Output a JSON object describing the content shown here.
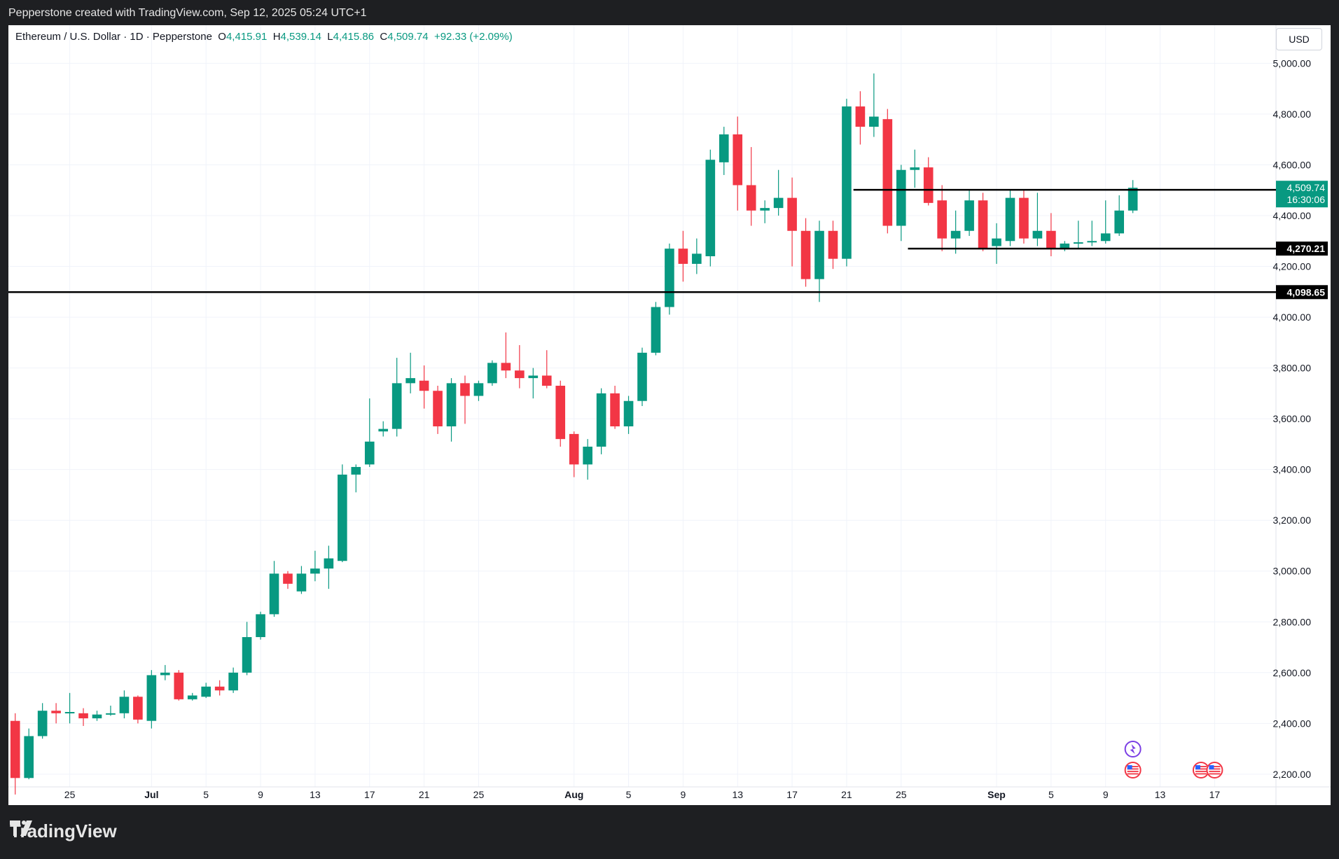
{
  "header": {
    "attribution": "Pepperstone created with TradingView.com, Sep 12, 2025 05:24 UTC+1"
  },
  "legend": {
    "symbol": "Ethereum / U.S. Dollar · 1D · Pepperstone",
    "o_label": "O",
    "o_value": "4,415.91",
    "h_label": "H",
    "h_value": "4,539.14",
    "l_label": "L",
    "l_value": "4,415.86",
    "c_label": "C",
    "c_value": "4,509.74",
    "change": "+92.33 (+2.09%)"
  },
  "currency_button": "USD",
  "footer": {
    "brand": "TradingView"
  },
  "colors": {
    "up": "#089981",
    "down": "#f23645",
    "grid": "#f0f3fa",
    "line": "#000000",
    "text": "#131722"
  },
  "chart_data": {
    "type": "candlestick",
    "ylim": [
      2150,
      5150
    ],
    "y_ticks": [
      2200,
      2400,
      2600,
      2800,
      3000,
      3200,
      3400,
      3600,
      3800,
      4000,
      4200,
      4400,
      4600,
      4800,
      5000
    ],
    "y_tick_labels": [
      "2,200.00",
      "2,400.00",
      "2,600.00",
      "2,800.00",
      "3,000.00",
      "3,200.00",
      "3,400.00",
      "3,600.00",
      "3,800.00",
      "4,000.00",
      "4,200.00",
      "4,400.00",
      "4,600.00",
      "4,800.00",
      "5,000.00"
    ],
    "x_ticks": [
      {
        "date": "2025-06-25",
        "label": "25"
      },
      {
        "date": "2025-07-01",
        "label": "Jul"
      },
      {
        "date": "2025-07-05",
        "label": "5"
      },
      {
        "date": "2025-07-09",
        "label": "9"
      },
      {
        "date": "2025-07-13",
        "label": "13"
      },
      {
        "date": "2025-07-17",
        "label": "17"
      },
      {
        "date": "2025-07-21",
        "label": "21"
      },
      {
        "date": "2025-07-25",
        "label": "25"
      },
      {
        "date": "2025-08-01",
        "label": "Aug"
      },
      {
        "date": "2025-08-05",
        "label": "5"
      },
      {
        "date": "2025-08-09",
        "label": "9"
      },
      {
        "date": "2025-08-13",
        "label": "13"
      },
      {
        "date": "2025-08-17",
        "label": "17"
      },
      {
        "date": "2025-08-21",
        "label": "21"
      },
      {
        "date": "2025-08-25",
        "label": "25"
      },
      {
        "date": "2025-09-01",
        "label": "Sep"
      },
      {
        "date": "2025-09-05",
        "label": "5"
      },
      {
        "date": "2025-09-09",
        "label": "9"
      },
      {
        "date": "2025-09-13",
        "label": "13"
      },
      {
        "date": "2025-09-17",
        "label": "17"
      }
    ],
    "xlim": [
      "2025-06-21",
      "2025-09-21"
    ],
    "candles": [
      {
        "date": "2025-06-21",
        "o": 2410,
        "h": 2440,
        "l": 2120,
        "c": 2185
      },
      {
        "date": "2025-06-22",
        "o": 2185,
        "h": 2380,
        "l": 2180,
        "c": 2350
      },
      {
        "date": "2025-06-23",
        "o": 2350,
        "h": 2480,
        "l": 2340,
        "c": 2450
      },
      {
        "date": "2025-06-24",
        "o": 2450,
        "h": 2480,
        "l": 2400,
        "c": 2440
      },
      {
        "date": "2025-06-25",
        "o": 2440,
        "h": 2520,
        "l": 2400,
        "c": 2445
      },
      {
        "date": "2025-06-26",
        "o": 2440,
        "h": 2460,
        "l": 2390,
        "c": 2420
      },
      {
        "date": "2025-06-27",
        "o": 2420,
        "h": 2450,
        "l": 2410,
        "c": 2435
      },
      {
        "date": "2025-06-28",
        "o": 2435,
        "h": 2470,
        "l": 2430,
        "c": 2440
      },
      {
        "date": "2025-06-29",
        "o": 2440,
        "h": 2530,
        "l": 2420,
        "c": 2505
      },
      {
        "date": "2025-06-30",
        "o": 2505,
        "h": 2510,
        "l": 2400,
        "c": 2415
      },
      {
        "date": "2025-07-01",
        "o": 2410,
        "h": 2610,
        "l": 2380,
        "c": 2590
      },
      {
        "date": "2025-07-02",
        "o": 2590,
        "h": 2630,
        "l": 2570,
        "c": 2600
      },
      {
        "date": "2025-07-03",
        "o": 2600,
        "h": 2610,
        "l": 2490,
        "c": 2495
      },
      {
        "date": "2025-07-04",
        "o": 2495,
        "h": 2520,
        "l": 2490,
        "c": 2510
      },
      {
        "date": "2025-07-05",
        "o": 2505,
        "h": 2560,
        "l": 2500,
        "c": 2545
      },
      {
        "date": "2025-07-06",
        "o": 2545,
        "h": 2570,
        "l": 2510,
        "c": 2530
      },
      {
        "date": "2025-07-07",
        "o": 2530,
        "h": 2620,
        "l": 2520,
        "c": 2600
      },
      {
        "date": "2025-07-08",
        "o": 2600,
        "h": 2800,
        "l": 2590,
        "c": 2740
      },
      {
        "date": "2025-07-09",
        "o": 2740,
        "h": 2840,
        "l": 2730,
        "c": 2830
      },
      {
        "date": "2025-07-10",
        "o": 2830,
        "h": 3040,
        "l": 2820,
        "c": 2990
      },
      {
        "date": "2025-07-11",
        "o": 2990,
        "h": 3000,
        "l": 2930,
        "c": 2950
      },
      {
        "date": "2025-07-12",
        "o": 2920,
        "h": 3020,
        "l": 2910,
        "c": 2990
      },
      {
        "date": "2025-07-13",
        "o": 2990,
        "h": 3080,
        "l": 2960,
        "c": 3010
      },
      {
        "date": "2025-07-14",
        "o": 3010,
        "h": 3100,
        "l": 2930,
        "c": 3050
      },
      {
        "date": "2025-07-15",
        "o": 3040,
        "h": 3420,
        "l": 3035,
        "c": 3380
      },
      {
        "date": "2025-07-16",
        "o": 3380,
        "h": 3420,
        "l": 3310,
        "c": 3410
      },
      {
        "date": "2025-07-17",
        "o": 3420,
        "h": 3680,
        "l": 3410,
        "c": 3510
      },
      {
        "date": "2025-07-18",
        "o": 3550,
        "h": 3590,
        "l": 3530,
        "c": 3560
      },
      {
        "date": "2025-07-19",
        "o": 3560,
        "h": 3840,
        "l": 3530,
        "c": 3740
      },
      {
        "date": "2025-07-20",
        "o": 3740,
        "h": 3860,
        "l": 3700,
        "c": 3760
      },
      {
        "date": "2025-07-21",
        "o": 3750,
        "h": 3810,
        "l": 3640,
        "c": 3710
      },
      {
        "date": "2025-07-22",
        "o": 3710,
        "h": 3730,
        "l": 3540,
        "c": 3570
      },
      {
        "date": "2025-07-23",
        "o": 3570,
        "h": 3760,
        "l": 3510,
        "c": 3740
      },
      {
        "date": "2025-07-24",
        "o": 3740,
        "h": 3770,
        "l": 3580,
        "c": 3690
      },
      {
        "date": "2025-07-25",
        "o": 3690,
        "h": 3750,
        "l": 3670,
        "c": 3740
      },
      {
        "date": "2025-07-26",
        "o": 3740,
        "h": 3830,
        "l": 3730,
        "c": 3820
      },
      {
        "date": "2025-07-27",
        "o": 3820,
        "h": 3940,
        "l": 3760,
        "c": 3790
      },
      {
        "date": "2025-07-28",
        "o": 3790,
        "h": 3890,
        "l": 3720,
        "c": 3760
      },
      {
        "date": "2025-07-29",
        "o": 3760,
        "h": 3800,
        "l": 3680,
        "c": 3770
      },
      {
        "date": "2025-07-30",
        "o": 3770,
        "h": 3870,
        "l": 3720,
        "c": 3730
      },
      {
        "date": "2025-07-31",
        "o": 3730,
        "h": 3750,
        "l": 3490,
        "c": 3520
      },
      {
        "date": "2025-08-01",
        "o": 3540,
        "h": 3550,
        "l": 3370,
        "c": 3420
      },
      {
        "date": "2025-08-02",
        "o": 3420,
        "h": 3520,
        "l": 3360,
        "c": 3490
      },
      {
        "date": "2025-08-03",
        "o": 3490,
        "h": 3720,
        "l": 3460,
        "c": 3700
      },
      {
        "date": "2025-08-04",
        "o": 3700,
        "h": 3730,
        "l": 3560,
        "c": 3570
      },
      {
        "date": "2025-08-05",
        "o": 3570,
        "h": 3690,
        "l": 3540,
        "c": 3670
      },
      {
        "date": "2025-08-06",
        "o": 3670,
        "h": 3880,
        "l": 3650,
        "c": 3860
      },
      {
        "date": "2025-08-07",
        "o": 3860,
        "h": 4060,
        "l": 3850,
        "c": 4040
      },
      {
        "date": "2025-08-08",
        "o": 4040,
        "h": 4290,
        "l": 4010,
        "c": 4270
      },
      {
        "date": "2025-08-09",
        "o": 4270,
        "h": 4340,
        "l": 4140,
        "c": 4210
      },
      {
        "date": "2025-08-10",
        "o": 4210,
        "h": 4310,
        "l": 4170,
        "c": 4250
      },
      {
        "date": "2025-08-11",
        "o": 4240,
        "h": 4660,
        "l": 4200,
        "c": 4620
      },
      {
        "date": "2025-08-12",
        "o": 4610,
        "h": 4750,
        "l": 4560,
        "c": 4720
      },
      {
        "date": "2025-08-13",
        "o": 4720,
        "h": 4790,
        "l": 4420,
        "c": 4520
      },
      {
        "date": "2025-08-14",
        "o": 4520,
        "h": 4670,
        "l": 4360,
        "c": 4420
      },
      {
        "date": "2025-08-15",
        "o": 4420,
        "h": 4460,
        "l": 4370,
        "c": 4430
      },
      {
        "date": "2025-08-16",
        "o": 4430,
        "h": 4580,
        "l": 4400,
        "c": 4470
      },
      {
        "date": "2025-08-17",
        "o": 4470,
        "h": 4550,
        "l": 4200,
        "c": 4340
      },
      {
        "date": "2025-08-18",
        "o": 4340,
        "h": 4390,
        "l": 4120,
        "c": 4150
      },
      {
        "date": "2025-08-19",
        "o": 4150,
        "h": 4380,
        "l": 4060,
        "c": 4340
      },
      {
        "date": "2025-08-20",
        "o": 4340,
        "h": 4380,
        "l": 4190,
        "c": 4230
      },
      {
        "date": "2025-08-21",
        "o": 4230,
        "h": 4860,
        "l": 4200,
        "c": 4830
      },
      {
        "date": "2025-08-22",
        "o": 4830,
        "h": 4890,
        "l": 4680,
        "c": 4750
      },
      {
        "date": "2025-08-23",
        "o": 4750,
        "h": 4960,
        "l": 4710,
        "c": 4790
      },
      {
        "date": "2025-08-24",
        "o": 4780,
        "h": 4820,
        "l": 4330,
        "c": 4360
      },
      {
        "date": "2025-08-25",
        "o": 4360,
        "h": 4600,
        "l": 4300,
        "c": 4580
      },
      {
        "date": "2025-08-26",
        "o": 4580,
        "h": 4660,
        "l": 4510,
        "c": 4590
      },
      {
        "date": "2025-08-27",
        "o": 4590,
        "h": 4630,
        "l": 4440,
        "c": 4450
      },
      {
        "date": "2025-08-28",
        "o": 4460,
        "h": 4520,
        "l": 4260,
        "c": 4310
      },
      {
        "date": "2025-08-29",
        "o": 4310,
        "h": 4420,
        "l": 4250,
        "c": 4340
      },
      {
        "date": "2025-08-30",
        "o": 4340,
        "h": 4500,
        "l": 4320,
        "c": 4460
      },
      {
        "date": "2025-08-31",
        "o": 4460,
        "h": 4490,
        "l": 4260,
        "c": 4270
      },
      {
        "date": "2025-09-01",
        "o": 4280,
        "h": 4370,
        "l": 4210,
        "c": 4310
      },
      {
        "date": "2025-09-02",
        "o": 4300,
        "h": 4500,
        "l": 4280,
        "c": 4470
      },
      {
        "date": "2025-09-03",
        "o": 4470,
        "h": 4500,
        "l": 4290,
        "c": 4310
      },
      {
        "date": "2025-09-04",
        "o": 4310,
        "h": 4490,
        "l": 4280,
        "c": 4340
      },
      {
        "date": "2025-09-05",
        "o": 4340,
        "h": 4410,
        "l": 4240,
        "c": 4270
      },
      {
        "date": "2025-09-06",
        "o": 4270,
        "h": 4300,
        "l": 4260,
        "c": 4290
      },
      {
        "date": "2025-09-07",
        "o": 4290,
        "h": 4380,
        "l": 4270,
        "c": 4295
      },
      {
        "date": "2025-09-08",
        "o": 4295,
        "h": 4380,
        "l": 4280,
        "c": 4300
      },
      {
        "date": "2025-09-09",
        "o": 4300,
        "h": 4460,
        "l": 4290,
        "c": 4330
      },
      {
        "date": "2025-09-10",
        "o": 4330,
        "h": 4480,
        "l": 4320,
        "c": 4420
      },
      {
        "date": "2025-09-11",
        "o": 4420,
        "h": 4540,
        "l": 4410,
        "c": 4509.74
      }
    ],
    "levels": [
      {
        "value": 4098.65,
        "label": "4,098.65",
        "start": "2025-06-21"
      },
      {
        "value": 4501.72,
        "label": "4,501.72",
        "start": "2025-08-22"
      },
      {
        "value": 4270.21,
        "label": "4,270.21",
        "start": "2025-08-26"
      }
    ],
    "last_price": {
      "value": 4509.74,
      "label": "4,509.74",
      "countdown": "16:30:06"
    },
    "event_markers": [
      {
        "date": "2025-09-11",
        "row": "top",
        "icon": "sparkle-icon"
      },
      {
        "date": "2025-09-11",
        "row": "bottom",
        "icon": "us-flag-icon"
      },
      {
        "date": "2025-09-16",
        "row": "bottom",
        "icon": "us-flag-icon"
      },
      {
        "date": "2025-09-17",
        "row": "bottom",
        "icon": "us-flag-icon"
      }
    ]
  }
}
